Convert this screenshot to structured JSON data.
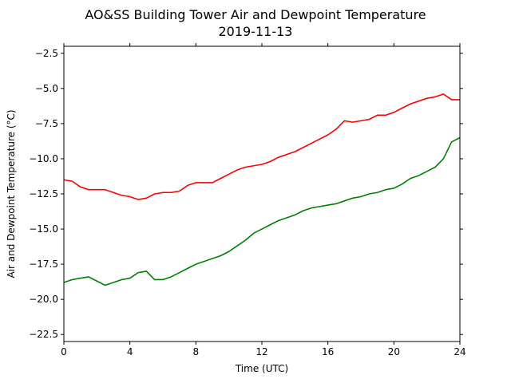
{
  "chart_data": {
    "type": "line",
    "title": "AO&SS Building Tower Air and Dewpoint Temperature",
    "subtitle": "2019-11-13",
    "xlabel": "Time (UTC)",
    "ylabel": "Air and Dewpoint Temperature (°C)",
    "xlim": [
      0,
      24
    ],
    "ylim": [
      -23,
      -2
    ],
    "xticks": [
      0,
      4,
      8,
      12,
      16,
      20,
      24
    ],
    "yticks": [
      -22.5,
      -20.0,
      -17.5,
      -15.0,
      -12.5,
      -10.0,
      -7.5,
      -5.0,
      -2.5
    ],
    "ytick_labels": [
      "−22.5",
      "−20.0",
      "−17.5",
      "−15.0",
      "−12.5",
      "−10.0",
      "−7.5",
      "−5.0",
      "−2.5"
    ],
    "grid": false,
    "series": [
      {
        "color": "#ff0000",
        "x": [
          0,
          0.5,
          1,
          1.5,
          2,
          2.5,
          3,
          3.5,
          4,
          4.5,
          5,
          5.5,
          6,
          6.5,
          7,
          7.5,
          8,
          8.5,
          9,
          9.5,
          10,
          10.5,
          11,
          11.5,
          12,
          12.5,
          13,
          13.5,
          14,
          14.5,
          15,
          15.5,
          16,
          16.5,
          17,
          17.5,
          18,
          18.5,
          19,
          19.5,
          20,
          20.5,
          21,
          21.5,
          22,
          22.5,
          23,
          23.5,
          24
        ],
        "y": [
          -11.5,
          -11.6,
          -12.0,
          -12.2,
          -12.2,
          -12.2,
          -12.4,
          -12.6,
          -12.7,
          -12.9,
          -12.8,
          -12.5,
          -12.4,
          -12.4,
          -12.3,
          -11.9,
          -11.7,
          -11.7,
          -11.7,
          -11.4,
          -11.1,
          -10.8,
          -10.6,
          -10.5,
          -10.4,
          -10.2,
          -9.9,
          -9.7,
          -9.5,
          -9.2,
          -8.9,
          -8.6,
          -8.3,
          -7.9,
          -7.3,
          -7.4,
          -7.3,
          -7.2,
          -6.9,
          -6.9,
          -6.7,
          -6.4,
          -6.1,
          -5.9,
          -5.7,
          -5.6,
          -5.4,
          -5.8,
          -5.8
        ]
      },
      {
        "color": "#008000",
        "x": [
          0,
          0.5,
          1,
          1.5,
          2,
          2.5,
          3,
          3.5,
          4,
          4.5,
          5,
          5.5,
          6,
          6.5,
          7,
          7.5,
          8,
          8.5,
          9,
          9.5,
          10,
          10.5,
          11,
          11.5,
          12,
          12.5,
          13,
          13.5,
          14,
          14.5,
          15,
          15.5,
          16,
          16.5,
          17,
          17.5,
          18,
          18.5,
          19,
          19.5,
          20,
          20.5,
          21,
          21.5,
          22,
          22.5,
          23,
          23.5,
          24
        ],
        "y": [
          -18.8,
          -18.6,
          -18.5,
          -18.4,
          -18.7,
          -19.0,
          -18.8,
          -18.6,
          -18.5,
          -18.1,
          -18.0,
          -18.6,
          -18.6,
          -18.4,
          -18.1,
          -17.8,
          -17.5,
          -17.3,
          -17.1,
          -16.9,
          -16.6,
          -16.2,
          -15.8,
          -15.3,
          -15.0,
          -14.7,
          -14.4,
          -14.2,
          -14.0,
          -13.7,
          -13.5,
          -13.4,
          -13.3,
          -13.2,
          -13.0,
          -12.8,
          -12.7,
          -12.5,
          -12.4,
          -12.2,
          -12.1,
          -11.8,
          -11.4,
          -11.2,
          -10.9,
          -10.6,
          -10.0,
          -8.8,
          -8.5
        ]
      }
    ]
  }
}
